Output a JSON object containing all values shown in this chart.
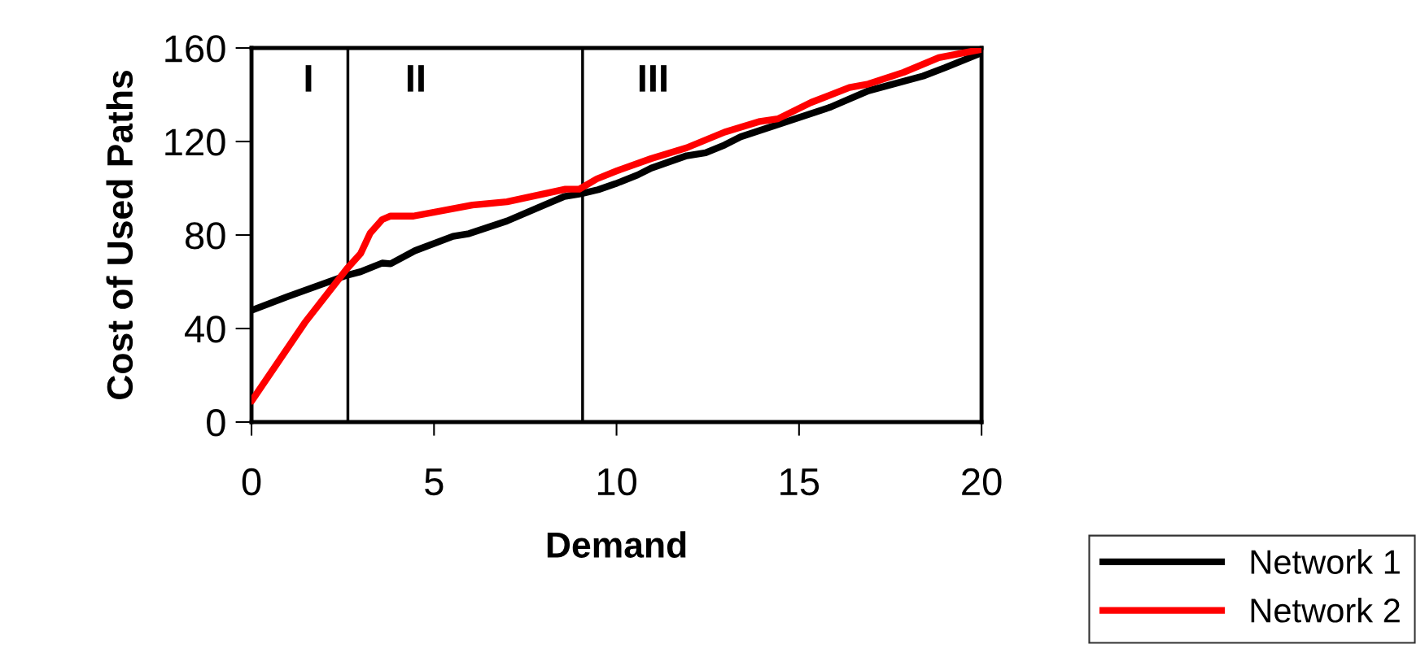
{
  "chart_data": {
    "type": "line",
    "xlabel": "Demand",
    "ylabel": "Cost of Used Paths",
    "xlim": [
      0,
      20
    ],
    "xticks": [
      0,
      5,
      10,
      15,
      20
    ],
    "ylim": [
      0,
      160
    ],
    "yticks": [
      0,
      40,
      80,
      120,
      160
    ],
    "grid": false,
    "legend": "bottom right",
    "marker": "none",
    "line_style": "solid",
    "series": [
      {
        "name": "Network 1",
        "color": "#000000",
        "x": [
          0,
          0.98,
          2.62,
          2.99,
          3.58,
          3.81,
          4.48,
          5.52,
          5.96,
          7.0,
          8.57,
          9.01,
          9.5,
          9.98,
          10.58,
          10.95,
          11.92,
          12.44,
          12.96,
          13.4,
          14.97,
          15.86,
          16.9,
          18.4,
          18.99,
          20
        ],
        "values": [
          47.8,
          53.6,
          62.8,
          64.3,
          68,
          67.7,
          73.3,
          79.4,
          80.6,
          86,
          96.5,
          97.6,
          99.4,
          102,
          105.7,
          108.6,
          113.9,
          115.2,
          118.5,
          122,
          130.1,
          134.7,
          141.7,
          148,
          151.5,
          157.9
        ]
      },
      {
        "name": "Network 2",
        "color": "#ff0000",
        "x": [
          0,
          1.46,
          2.62,
          2.99,
          3.25,
          3.58,
          3.81,
          4.44,
          6.05,
          7.0,
          8.6,
          8.98,
          9.46,
          10.02,
          10.95,
          11.92,
          12.96,
          13.93,
          14.42,
          15.33,
          16.38,
          16.9,
          17.87,
          18.83,
          20
        ],
        "values": [
          8.9,
          42.5,
          65.7,
          72.1,
          80.8,
          86.6,
          88.1,
          88.1,
          92.8,
          94.2,
          99.6,
          99.6,
          104,
          107.5,
          112.7,
          117.3,
          124,
          128.6,
          129.7,
          136.7,
          143.1,
          144.6,
          149.6,
          155.9,
          159.4
        ]
      }
    ],
    "ref_lines": [
      {
        "axis": "x",
        "value": 2.64,
        "color": "#000000"
      },
      {
        "axis": "x",
        "value": 9.07,
        "color": "#000000"
      }
    ],
    "annotations": [
      "I",
      "II",
      "III"
    ]
  }
}
